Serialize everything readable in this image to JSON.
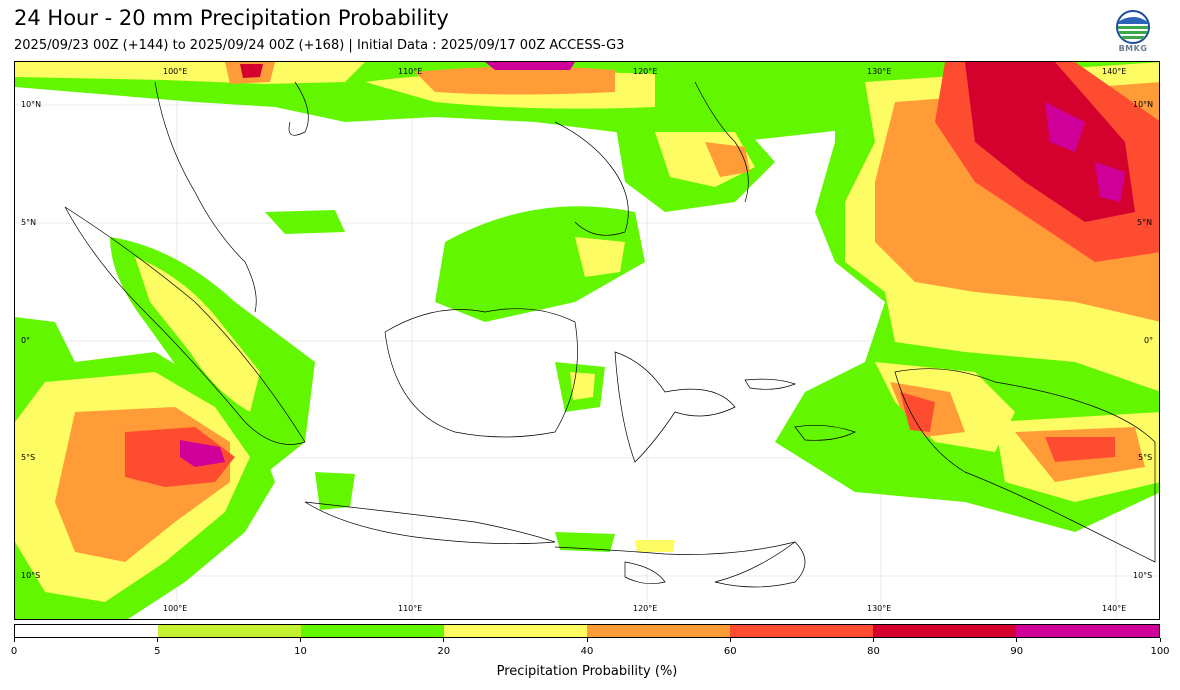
{
  "header": {
    "title": "24 Hour - 20 mm Precipitation Probability",
    "subtitle": "2025/09/23 00Z (+144) to 2025/09/24 00Z (+168) | Initial Data : 2025/09/17 00Z ACCESS-G3",
    "logo_text": "BMKG"
  },
  "map": {
    "lon_labels_top": [
      "100°E",
      "110°E",
      "120°E",
      "130°E",
      "140°E"
    ],
    "lon_labels_bottom": [
      "100°E",
      "110°E",
      "120°E",
      "130°E",
      "140°E"
    ],
    "lat_labels_left": [
      "10°N",
      "5°N",
      "0°",
      "5°S",
      "10°S"
    ],
    "lat_labels_right": [
      "10°N",
      "5°N",
      "0°",
      "5°S",
      "10°S"
    ]
  },
  "legend": {
    "title": "Precipitation Probability (%)",
    "ticks": [
      "0",
      "5",
      "10",
      "20",
      "40",
      "60",
      "80",
      "90",
      "100"
    ],
    "colors": [
      "#ffffff",
      "#c4f232",
      "#62f700",
      "#fdfc62",
      "#ff9c38",
      "#fe4c30",
      "#d4002e",
      "#cf0099"
    ]
  }
}
